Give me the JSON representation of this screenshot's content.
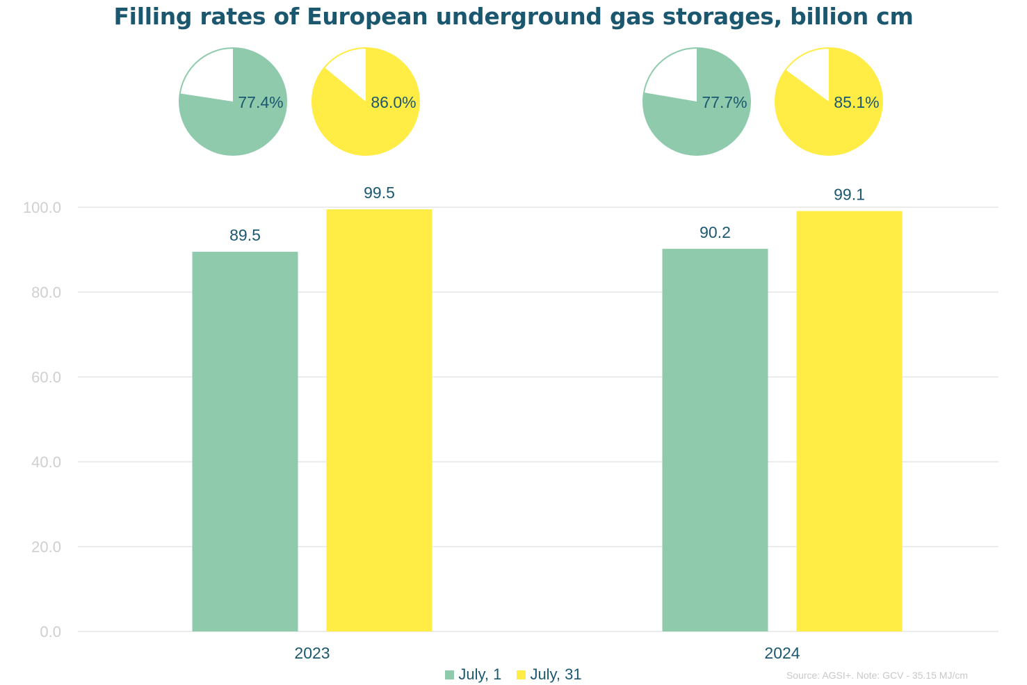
{
  "chart_data": {
    "type": "bar",
    "title": "Filling rates of European underground gas storages, billion cm",
    "categories": [
      "2023",
      "2024"
    ],
    "series": [
      {
        "name": "July, 1",
        "values": [
          89.5,
          90.2
        ],
        "color": "#8fcaad"
      },
      {
        "name": "July, 31",
        "values": [
          99.5,
          99.1
        ],
        "color": "#ffec44"
      }
    ],
    "data_labels": [
      [
        "89.5",
        "90.2"
      ],
      [
        "99.5",
        "99.1"
      ]
    ],
    "ylim": [
      0,
      100
    ],
    "yticks": [
      "0.0",
      "20.0",
      "40.0",
      "60.0",
      "80.0",
      "100.0"
    ],
    "grid": true,
    "legend_position": "bottom",
    "pies": [
      {
        "category": "2023",
        "series": "July, 1",
        "value": 77.4,
        "label": "77.4%"
      },
      {
        "category": "2023",
        "series": "July, 31",
        "value": 86.0,
        "label": "86.0%"
      },
      {
        "category": "2024",
        "series": "July, 1",
        "value": 77.7,
        "label": "77.7%"
      },
      {
        "category": "2024",
        "series": "July, 31",
        "value": 85.1,
        "label": "85.1%"
      }
    ],
    "source_note": "Source: AGSI+. Note: GCV - 35.15 MJ/cm"
  },
  "colors": {
    "title": "#1b5870",
    "label": "#1b5870",
    "tick": "#cfcfcf",
    "grid": "#ececec",
    "source": "#c8c8c8"
  }
}
